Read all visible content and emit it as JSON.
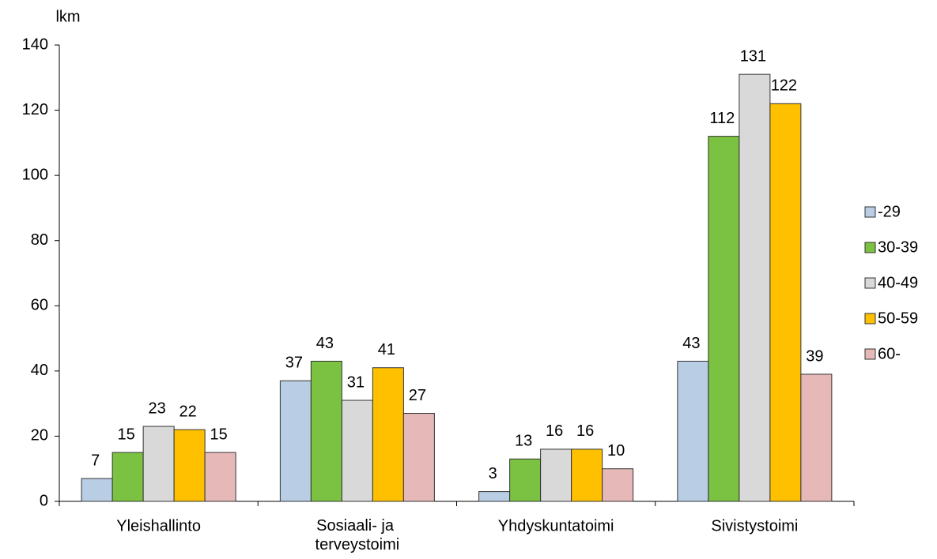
{
  "chart_data": {
    "type": "bar",
    "y_label": "lkm",
    "categories": [
      "Yleishallinto",
      "Sosiaali- ja terveystoimi",
      "Yhdyskuntatoimi",
      "Sivistystoimi"
    ],
    "series": [
      {
        "name": "-29",
        "color": "#b9cde5",
        "values": [
          7,
          37,
          3,
          43
        ]
      },
      {
        "name": "30-39",
        "color": "#7cc242",
        "values": [
          15,
          43,
          13,
          112
        ]
      },
      {
        "name": "40-49",
        "color": "#d9d9d9",
        "values": [
          23,
          31,
          16,
          131
        ]
      },
      {
        "name": "50-59",
        "color": "#ffc000",
        "values": [
          22,
          41,
          16,
          122
        ]
      },
      {
        "name": "60-",
        "color": "#e6b9b8",
        "values": [
          15,
          27,
          10,
          39
        ]
      }
    ],
    "ylim": [
      0,
      140
    ],
    "yticks": [
      0,
      20,
      40,
      60,
      80,
      100,
      120,
      140
    ],
    "legend": "right"
  }
}
